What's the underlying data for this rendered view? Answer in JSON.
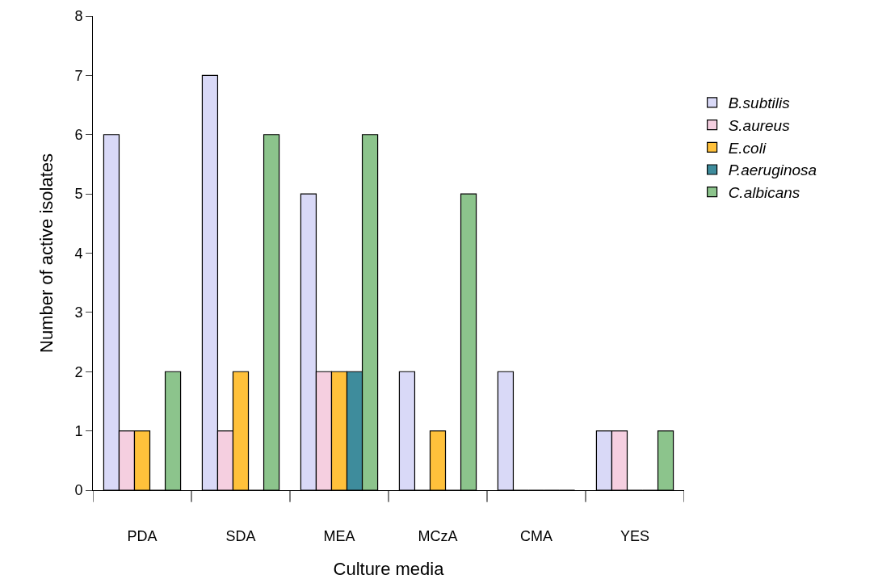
{
  "chart_data": {
    "type": "bar",
    "xlabel": "Culture media",
    "ylabel": "Number of active isolates",
    "categories": [
      "PDA",
      "SDA",
      "MEA",
      "MCzA",
      "CMA",
      "YES"
    ],
    "series": [
      {
        "name": "B.subtilis",
        "color": "#d9d9f7",
        "values": [
          6,
          7,
          5,
          2,
          2,
          1
        ]
      },
      {
        "name": "S.aureus",
        "color": "#f5cfe0",
        "values": [
          1,
          1,
          2,
          0,
          0,
          1
        ]
      },
      {
        "name": "E.coli",
        "color": "#ffc13b",
        "values": [
          1,
          2,
          2,
          1,
          0,
          0
        ]
      },
      {
        "name": "P.aeruginosa",
        "color": "#3e8c9c",
        "values": [
          0,
          0,
          2,
          0,
          0,
          0
        ]
      },
      {
        "name": "C.albicans",
        "color": "#8cc48c",
        "values": [
          2,
          6,
          6,
          5,
          0,
          1
        ]
      }
    ],
    "ylim": [
      0,
      8
    ],
    "yticks": [
      0,
      1,
      2,
      3,
      4,
      5,
      6,
      7,
      8
    ],
    "grid": false,
    "legend": "right"
  }
}
